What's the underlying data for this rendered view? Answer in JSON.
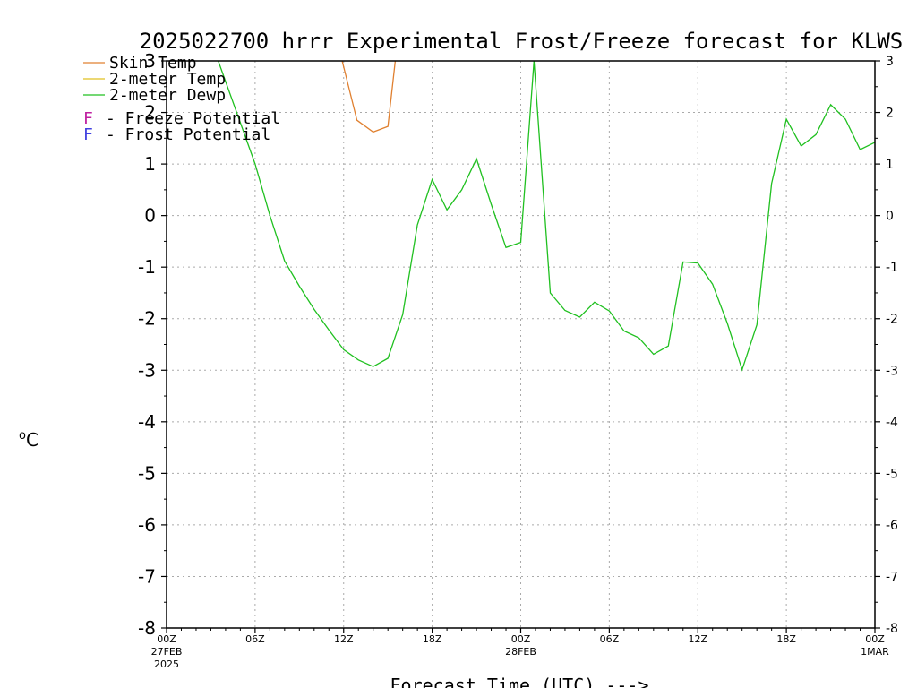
{
  "chart_data": {
    "type": "line",
    "title": "2025022700 hrrr Experimental Frost/Freeze forecast for KLWS",
    "xlabel": "Forecast Time (UTC) --->",
    "ylabel": "°C",
    "ylim": [
      -8,
      3
    ],
    "y_ticks": [
      "-8",
      "-7",
      "-6",
      "-5",
      "-4",
      "-3",
      "-2",
      "-1",
      "0",
      "1",
      "2",
      "3"
    ],
    "x_range_hours": [
      0,
      48
    ],
    "x_ticks": [
      {
        "hour": 0,
        "label": "00Z",
        "sub1": "27FEB",
        "sub2": "2025"
      },
      {
        "hour": 6,
        "label": "06Z",
        "sub1": "",
        "sub2": ""
      },
      {
        "hour": 12,
        "label": "12Z",
        "sub1": "",
        "sub2": ""
      },
      {
        "hour": 18,
        "label": "18Z",
        "sub1": "",
        "sub2": ""
      },
      {
        "hour": 24,
        "label": "00Z",
        "sub1": "28FEB",
        "sub2": ""
      },
      {
        "hour": 30,
        "label": "06Z",
        "sub1": "",
        "sub2": ""
      },
      {
        "hour": 36,
        "label": "12Z",
        "sub1": "",
        "sub2": ""
      },
      {
        "hour": 42,
        "label": "18Z",
        "sub1": "",
        "sub2": ""
      },
      {
        "hour": 48,
        "label": "00Z",
        "sub1": "1MAR",
        "sub2": ""
      }
    ],
    "grid": true,
    "series": [
      {
        "name": "Skin Temp",
        "color": "#e08030",
        "x": [
          11.9,
          12.9,
          14.0,
          15.0,
          15.5
        ],
        "y": [
          3.0,
          1.85,
          1.62,
          1.73,
          3.0
        ]
      },
      {
        "name": "2-meter Temp",
        "color": "#e0c020",
        "x": [],
        "y": []
      },
      {
        "name": "2-meter Dewp",
        "color": "#20c020",
        "x": [
          3.5,
          6.0,
          7.0,
          8.0,
          9.0,
          10.0,
          11.0,
          12.0,
          13.0,
          14.0,
          15.0,
          16.0,
          17.0,
          18.0,
          19.0,
          20.0,
          21.0,
          22.0,
          23.0,
          24.0,
          24.9,
          26.0,
          27.0,
          28.0,
          29.0,
          30.0,
          31.0,
          32.0,
          33.0,
          34.0,
          35.0,
          36.0,
          37.0,
          38.0,
          39.0,
          40.0,
          41.0,
          42.0,
          43.0,
          44.0,
          45.0,
          46.0,
          47.0,
          48.0
        ],
        "y": [
          3.0,
          1.0,
          0.0,
          -0.88,
          -1.37,
          -1.82,
          -2.22,
          -2.6,
          -2.8,
          -2.93,
          -2.77,
          -1.92,
          -0.18,
          0.7,
          0.11,
          0.5,
          1.1,
          0.22,
          -0.62,
          -0.52,
          3.0,
          -1.5,
          -1.84,
          -1.97,
          -1.68,
          -1.85,
          -2.24,
          -2.37,
          -2.69,
          -2.53,
          -0.9,
          -0.92,
          -1.33,
          -2.09,
          -2.99,
          -2.12,
          0.62,
          1.87,
          1.35,
          1.57,
          2.15,
          1.87,
          1.28,
          1.42
        ]
      }
    ],
    "legend": {
      "placement": "top-left",
      "entries": [
        {
          "label": "Skin Temp",
          "color": "#e08030"
        },
        {
          "label": "2-meter Temp",
          "color": "#e0c020"
        },
        {
          "label": "2-meter Dewp",
          "color": "#20c020"
        }
      ],
      "potential": [
        {
          "marker": "F",
          "marker_color": "#c020a0",
          "label": "- Freeze Potential"
        },
        {
          "marker": "F",
          "marker_color": "#4040e0",
          "label": "- Frost Potential"
        }
      ]
    }
  }
}
